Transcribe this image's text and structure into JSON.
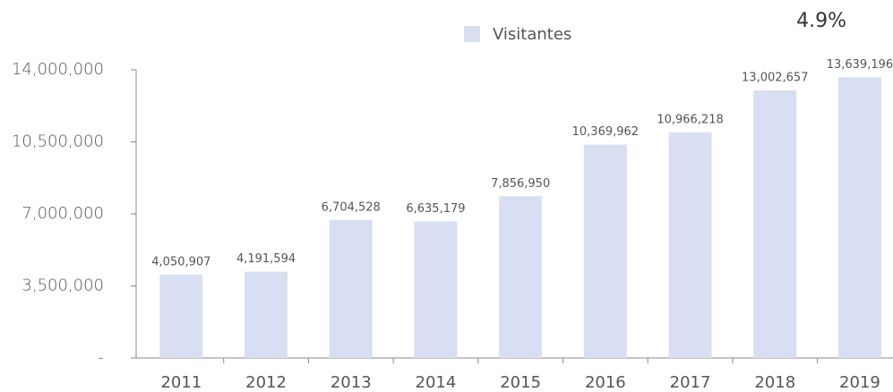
{
  "chart_data": {
    "type": "bar",
    "legend": "Visitantes",
    "annotation": "4.9%",
    "categories": [
      "2011",
      "2012",
      "2013",
      "2014",
      "2015",
      "2016",
      "2017",
      "2018",
      "2019"
    ],
    "values": [
      4050907,
      4191594,
      6704528,
      6635179,
      7856950,
      10369962,
      10966218,
      13002657,
      13639196
    ],
    "value_labels": [
      "4,050,907",
      "4,191,594",
      "6,704,528",
      "6,635,179",
      "7,856,950",
      "10,369,962",
      "10,966,218",
      "13,002,657",
      "13,639,196"
    ],
    "color": "#d9dff2",
    "ylim": [
      0,
      14000000
    ],
    "yticks": [
      {
        "value": 0,
        "label": "-"
      },
      {
        "value": 3500000,
        "label": "3,500,000"
      },
      {
        "value": 7000000,
        "label": "7,000,000"
      },
      {
        "value": 10500000,
        "label": "10,500,000"
      },
      {
        "value": 14000000,
        "label": "14,000,000"
      }
    ]
  }
}
